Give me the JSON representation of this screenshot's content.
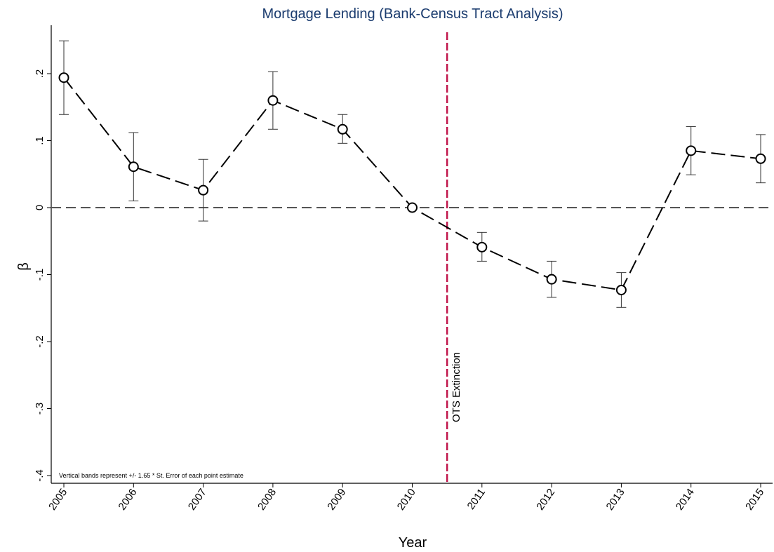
{
  "chart_data": {
    "type": "line",
    "title": "Mortgage Lending (Bank-Census Tract Analysis)",
    "xlabel": "Year",
    "ylabel": "β",
    "x": [
      2005,
      2006,
      2007,
      2008,
      2009,
      2010,
      2011,
      2012,
      2013,
      2014,
      2015
    ],
    "x_tick_labels": [
      "2005",
      "2006",
      "2007",
      "2008",
      "2009",
      "2010",
      "2011",
      "2012",
      "2013",
      "2014",
      "2015"
    ],
    "y_ticks": [
      0.2,
      0.1,
      0,
      -0.1,
      -0.2,
      -0.3,
      -0.4
    ],
    "y_tick_labels": [
      ".2",
      ".1",
      "0",
      "-.1",
      "-.2",
      "-.3",
      "-.4"
    ],
    "ylim": [
      -0.41,
      0.27
    ],
    "xlim": [
      2005,
      2015
    ],
    "series": [
      {
        "values": [
          0.194,
          0.061,
          0.026,
          0.16,
          0.117,
          0.0,
          -0.059,
          -0.107,
          -0.123,
          0.085,
          0.073
        ],
        "ci_upper": [
          0.249,
          0.112,
          0.072,
          0.203,
          0.139,
          null,
          -0.037,
          -0.08,
          -0.097,
          0.121,
          0.109
        ],
        "ci_lower": [
          0.139,
          0.01,
          -0.02,
          0.117,
          0.096,
          null,
          -0.08,
          -0.134,
          -0.149,
          0.049,
          0.037
        ]
      }
    ],
    "reference_line_y": 0,
    "vertical_line_x": 2010.5,
    "vertical_line_label": "OTS Extinction",
    "vertical_line_color": "#c0154a",
    "line_color": "#000000",
    "zero_line_color": "#555555",
    "title_color": "#1a3b6e",
    "note": "Vertical bands represent +/- 1.65 * St. Error of each point estimate",
    "grid": false
  }
}
